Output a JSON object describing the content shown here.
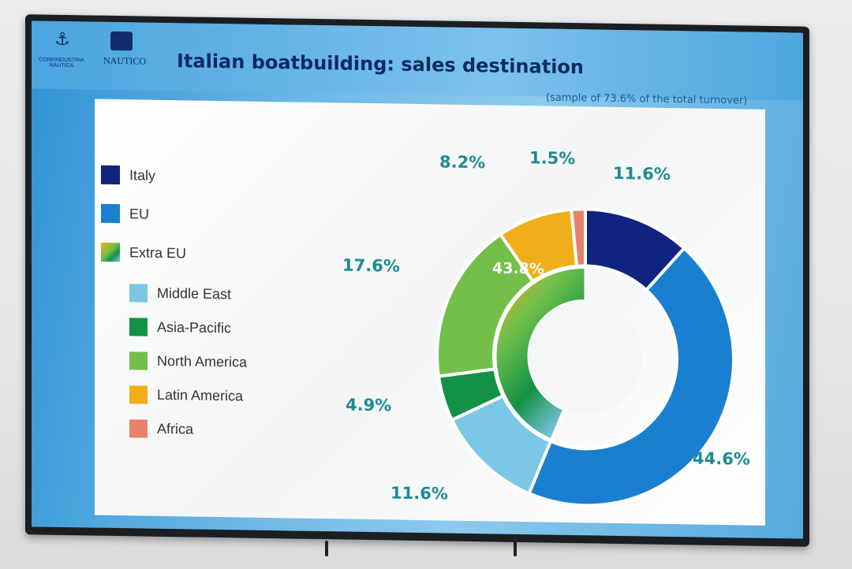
{
  "header": {
    "logo_left_text": "CONFINDUSTRIA NAUTICA",
    "logo_right_text": "NAUTICO",
    "title": "Italian boatbuilding: sales destination",
    "subtitle": "(sample of 73.6% of the total turnover)"
  },
  "colors": {
    "italy": "#10237f",
    "eu": "#1a7fd0",
    "middle_east": "#7cc6e6",
    "asia_pacific": "#139246",
    "north_america": "#72c04a",
    "latin_america": "#efae1a",
    "africa": "#e8816b",
    "label_teal": "#1f8b93"
  },
  "legend": {
    "main": [
      {
        "label": "Italy",
        "color": "#10237f"
      },
      {
        "label": "EU",
        "color": "#1a7fd0"
      },
      {
        "label": "Extra EU",
        "color": "gradient"
      }
    ],
    "sub": [
      {
        "label": "Middle East",
        "color": "#7cc6e6"
      },
      {
        "label": "Asia-Pacific",
        "color": "#139246"
      },
      {
        "label": "North America",
        "color": "#72c04a"
      },
      {
        "label": "Latin America",
        "color": "#efae1a"
      },
      {
        "label": "Africa",
        "color": "#e8816b"
      }
    ]
  },
  "chart_data": {
    "type": "pie",
    "subtype": "donut-two-ring",
    "title": "Italian boatbuilding: sales destination",
    "subtitle": "(sample of 73.6% of the total turnover)",
    "outer_ring": [
      {
        "name": "Italy",
        "value": 11.6,
        "label": "11.6%"
      },
      {
        "name": "EU",
        "value": 44.6,
        "label": "44.6%"
      },
      {
        "name": "Middle East",
        "value": 11.6,
        "label": "11.6%"
      },
      {
        "name": "Asia-Pacific",
        "value": 4.9,
        "label": "4.9%"
      },
      {
        "name": "North America",
        "value": 17.6,
        "label": "17.6%"
      },
      {
        "name": "Latin America",
        "value": 8.2,
        "label": "8.2%"
      },
      {
        "name": "Africa",
        "value": 1.5,
        "label": "1.5%"
      }
    ],
    "inner_ring": [
      {
        "name": "Extra EU",
        "value": 43.8,
        "label": "43.8%"
      }
    ],
    "legend_position": "left"
  }
}
